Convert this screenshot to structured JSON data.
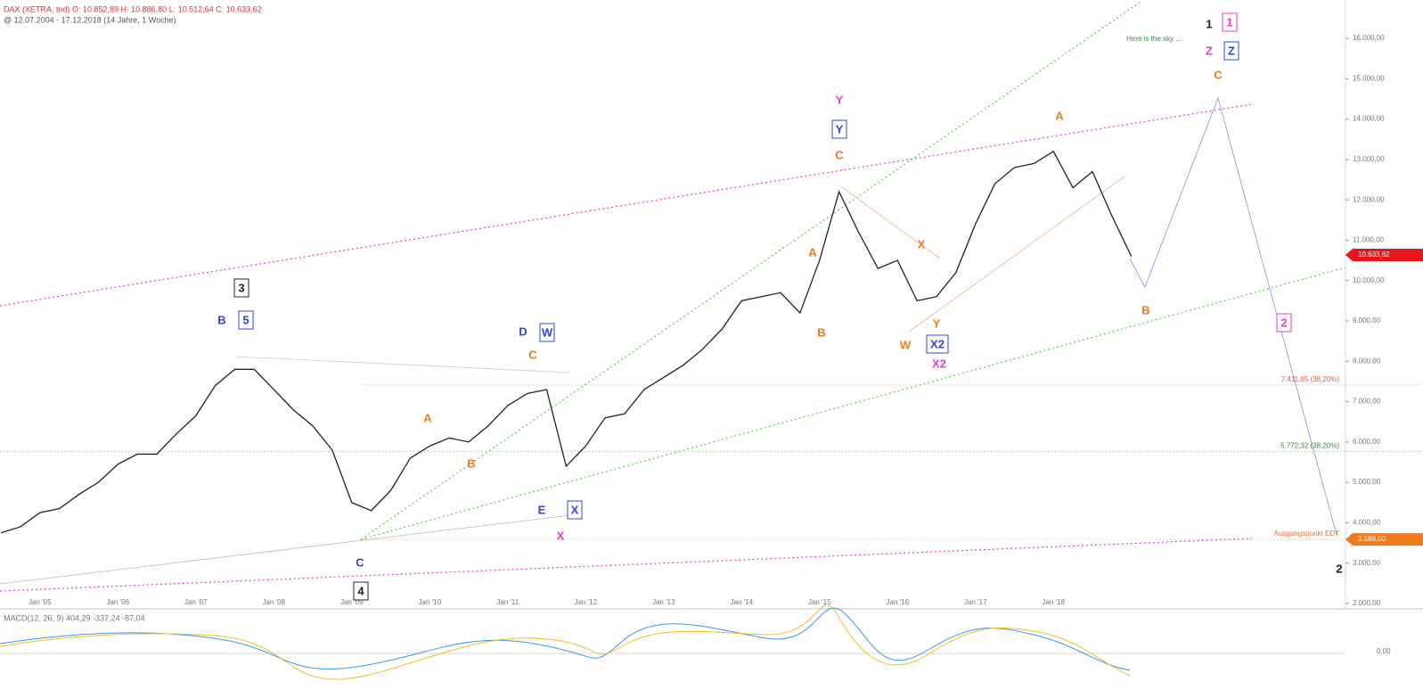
{
  "chart_data": {
    "type": "line",
    "header": "DAX (XETRA, tod)  O: 10.852,89  H: 10.886,80  L: 10.512,64  C: 10.633,62",
    "subheader": "@ 12.07.2004 - 17.12.2018  (14 Jahre, 1 Woche)",
    "indicator_label": "MACD(12, 26, 9)  404,29  -337,24  -87,04",
    "indicator_tick": {
      "value": 0,
      "label": "0,00"
    },
    "categories": [
      null,
      null,
      "Jan '05",
      null,
      null,
      null,
      "Jan '06",
      null,
      null,
      null,
      "Jan '07",
      null,
      null,
      null,
      "Jan '08",
      null,
      null,
      null,
      "Jan '09",
      null,
      null,
      null,
      "Jan '10",
      null,
      null,
      null,
      "Jan '11",
      null,
      null,
      null,
      "Jan '12",
      null,
      null,
      null,
      "Jan '13",
      null,
      null,
      null,
      "Jan '14",
      null,
      null,
      null,
      "Jan '15",
      null,
      null,
      null,
      "Jan '16",
      null,
      null,
      null,
      "Jan '17",
      null,
      null,
      null,
      "Jan '18",
      null,
      null,
      null,
      null
    ],
    "series": [
      {
        "color": "#222222",
        "values": [
          3750,
          3900,
          4250,
          4350,
          4700,
          5000,
          5450,
          5700,
          5700,
          6200,
          6650,
          7400,
          7800,
          7800,
          7300,
          6800,
          6400,
          5800,
          4500,
          4300,
          4800,
          5600,
          5900,
          6100,
          6000,
          6400,
          6900,
          7200,
          7300,
          5400,
          5900,
          6600,
          6700,
          7300,
          7600,
          7900,
          8300,
          8800,
          9500,
          9600,
          9700,
          9200,
          10500,
          12200,
          11200,
          10300,
          10500,
          9500,
          9600,
          10200,
          11400,
          12400,
          12800,
          12900,
          13200,
          12300,
          12700,
          11600,
          10600
        ]
      }
    ],
    "ylim": [
      1867,
      16950
    ],
    "yticks": [
      {
        "value": 2000,
        "label": "2.000,00"
      },
      {
        "value": 3000,
        "label": "3.000,00"
      },
      {
        "value": 4000,
        "label": "4.000,00"
      },
      {
        "value": 5000,
        "label": "5.000,00"
      },
      {
        "value": 6000,
        "label": "6.000,00"
      },
      {
        "value": 7000,
        "label": "7.000,00"
      },
      {
        "value": 8000,
        "label": "8.000,00"
      },
      {
        "value": 9000,
        "label": "9.000,00"
      },
      {
        "value": 10000,
        "label": "10.000,00"
      },
      {
        "value": 11000,
        "label": "11.000,00"
      },
      {
        "value": 12000,
        "label": "12.000,00"
      },
      {
        "value": 13000,
        "label": "13.000,00"
      },
      {
        "value": 14000,
        "label": "14.000,00"
      },
      {
        "value": 15000,
        "label": "15.000,00"
      },
      {
        "value": 16000,
        "label": "16.000,00"
      }
    ],
    "levels": [
      {
        "value": 7411.85,
        "label": "7.411,85 (38,20%)",
        "color": "#e06040"
      },
      {
        "value": 5772.32,
        "label": "5.772,32 (38,20%)",
        "color": "#3a8a3a"
      },
      {
        "value": 3588,
        "label": "Ausgangspunkt EDT",
        "color": "#e07030"
      }
    ],
    "price_tags": [
      {
        "value": 10633.62,
        "label": "10.633,62",
        "color": "#e8161b"
      },
      {
        "value": 3588,
        "label": "3.588,00",
        "color": "#f07a20"
      }
    ],
    "annotations": [
      {
        "text": "Here is the sky ...",
        "color": "#3a8a3a",
        "boxed": false
      },
      {
        "text": "1",
        "color": "#222222",
        "boxed": false
      },
      {
        "text": "1",
        "color": "#e83ad0",
        "boxed": true
      },
      {
        "text": "Z",
        "color": "#e83ad0",
        "boxed": false
      },
      {
        "text": "Z",
        "color": "#3344dd",
        "boxed": true
      },
      {
        "text": "C",
        "color": "#f07a20",
        "boxed": false
      },
      {
        "text": "Y",
        "color": "#e83ad0",
        "boxed": false
      },
      {
        "text": "Y",
        "color": "#3344dd",
        "boxed": true
      },
      {
        "text": "C",
        "color": "#f07a20",
        "boxed": false
      },
      {
        "text": "A",
        "color": "#f07a20",
        "boxed": false
      },
      {
        "text": "3",
        "color": "#222222",
        "boxed": true
      },
      {
        "text": "B",
        "color": "#3344dd",
        "boxed": false
      },
      {
        "text": "5",
        "color": "#3344dd",
        "boxed": true
      },
      {
        "text": "D",
        "color": "#3344dd",
        "boxed": false
      },
      {
        "text": "W",
        "color": "#3344dd",
        "boxed": true
      },
      {
        "text": "C",
        "color": "#f07a20",
        "boxed": false
      },
      {
        "text": "A",
        "color": "#f07a20",
        "boxed": false
      },
      {
        "text": "B",
        "color": "#f07a20",
        "boxed": false
      },
      {
        "text": "A",
        "color": "#f07a20",
        "boxed": false
      },
      {
        "text": "B",
        "color": "#f07a20",
        "boxed": false
      },
      {
        "text": "X",
        "color": "#f07a20",
        "boxed": false
      },
      {
        "text": "Y",
        "color": "#f07a20",
        "boxed": false
      },
      {
        "text": "W",
        "color": "#f07a20",
        "boxed": false
      },
      {
        "text": "X2",
        "color": "#3344dd",
        "boxed": true
      },
      {
        "text": "X2",
        "color": "#e83ad0",
        "boxed": false
      },
      {
        "text": "B",
        "color": "#f07a20",
        "boxed": false
      },
      {
        "text": "2",
        "color": "#e83ad0",
        "boxed": true
      },
      {
        "text": "2",
        "color": "#222222",
        "boxed": false
      },
      {
        "text": "E",
        "color": "#3344dd",
        "boxed": false
      },
      {
        "text": "X",
        "color": "#3344dd",
        "boxed": true
      },
      {
        "text": "X",
        "color": "#e83ad0",
        "boxed": false
      },
      {
        "text": "C",
        "color": "#3344dd",
        "boxed": false
      },
      {
        "text": "4",
        "color": "#222222",
        "boxed": true
      }
    ]
  }
}
